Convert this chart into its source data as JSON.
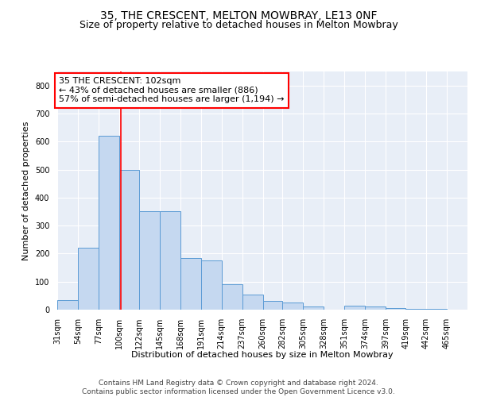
{
  "title_line1": "35, THE CRESCENT, MELTON MOWBRAY, LE13 0NF",
  "title_line2": "Size of property relative to detached houses in Melton Mowbray",
  "xlabel": "Distribution of detached houses by size in Melton Mowbray",
  "ylabel": "Number of detached properties",
  "bar_edges": [
    31,
    54,
    77,
    100,
    122,
    145,
    168,
    191,
    214,
    237,
    260,
    282,
    305,
    328,
    351,
    374,
    397,
    419,
    442,
    465,
    488
  ],
  "bar_heights": [
    35,
    220,
    620,
    500,
    350,
    350,
    185,
    175,
    90,
    55,
    30,
    25,
    10,
    0,
    15,
    10,
    5,
    2,
    2,
    1
  ],
  "bar_color": "#c5d8f0",
  "bar_edgecolor": "#5b9bd5",
  "property_size": 102,
  "annotation_text": "35 THE CRESCENT: 102sqm\n← 43% of detached houses are smaller (886)\n57% of semi-detached houses are larger (1,194) →",
  "annotation_box_color": "white",
  "annotation_box_edgecolor": "red",
  "vline_color": "red",
  "vline_x": 102,
  "ylim": [
    0,
    850
  ],
  "yticks": [
    0,
    100,
    200,
    300,
    400,
    500,
    600,
    700,
    800
  ],
  "footer_line1": "Contains HM Land Registry data © Crown copyright and database right 2024.",
  "footer_line2": "Contains public sector information licensed under the Open Government Licence v3.0.",
  "background_color": "#dce6f5",
  "plot_bg_color": "#e8eef7",
  "title_fontsize": 10,
  "subtitle_fontsize": 9,
  "tick_label_fontsize": 7,
  "annotation_fontsize": 8,
  "footer_fontsize": 6.5,
  "ylabel_fontsize": 8,
  "xlabel_fontsize": 8
}
